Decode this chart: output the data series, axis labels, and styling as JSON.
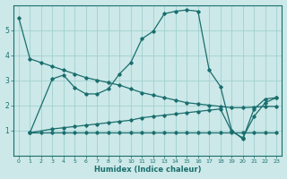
{
  "xlabel": "Humidex (Indice chaleur)",
  "background_color": "#cce8e8",
  "line_color": "#1a6e6e",
  "grid_color": "#99cccc",
  "xlim": [
    -0.5,
    23.5
  ],
  "ylim": [
    0,
    6
  ],
  "xticks": [
    0,
    1,
    2,
    3,
    4,
    5,
    6,
    7,
    8,
    9,
    10,
    11,
    12,
    13,
    14,
    15,
    16,
    17,
    18,
    19,
    20,
    21,
    22,
    23
  ],
  "yticks": [
    1,
    2,
    3,
    4,
    5
  ],
  "series": [
    {
      "x": [
        0,
        1,
        2,
        3,
        4,
        5,
        6,
        7,
        8,
        9,
        10,
        11,
        12,
        13,
        14,
        15,
        16,
        17,
        18,
        19,
        20,
        21,
        22,
        23
      ],
      "y": [
        5.5,
        3.85,
        3.7,
        3.55,
        3.4,
        3.25,
        3.1,
        3.0,
        2.9,
        2.8,
        2.65,
        2.5,
        2.4,
        2.3,
        2.2,
        2.1,
        2.05,
        2.0,
        1.95,
        1.9,
        1.9,
        1.92,
        1.95,
        1.95
      ]
    },
    {
      "x": [
        1,
        3,
        4,
        5,
        6,
        7,
        8,
        9,
        10,
        11,
        12,
        13,
        14,
        15,
        16,
        17,
        18,
        19,
        20,
        21,
        22,
        23
      ],
      "y": [
        0.9,
        3.05,
        3.2,
        2.7,
        2.45,
        2.45,
        2.65,
        3.25,
        3.7,
        4.65,
        4.95,
        5.65,
        5.75,
        5.8,
        5.75,
        3.4,
        2.75,
        1.0,
        0.65,
        1.85,
        2.25,
        2.3
      ]
    },
    {
      "x": [
        1,
        3,
        4,
        5,
        6,
        7,
        8,
        9,
        10,
        11,
        12,
        13,
        14,
        15,
        16,
        17,
        18,
        19,
        20,
        21,
        22,
        23
      ],
      "y": [
        0.9,
        1.05,
        1.1,
        1.15,
        1.2,
        1.25,
        1.3,
        1.35,
        1.4,
        1.5,
        1.55,
        1.6,
        1.65,
        1.7,
        1.75,
        1.8,
        1.85,
        0.95,
        0.7,
        1.55,
        2.1,
        2.3
      ]
    },
    {
      "x": [
        1,
        2,
        3,
        4,
        5,
        6,
        7,
        8,
        9,
        10,
        11,
        12,
        13,
        14,
        15,
        16,
        17,
        18,
        19,
        20,
        21,
        22,
        23
      ],
      "y": [
        0.9,
        0.9,
        0.9,
        0.9,
        0.9,
        0.9,
        0.9,
        0.9,
        0.9,
        0.9,
        0.9,
        0.9,
        0.9,
        0.9,
        0.9,
        0.9,
        0.9,
        0.9,
        0.9,
        0.9,
        0.9,
        0.9,
        0.9
      ]
    }
  ]
}
